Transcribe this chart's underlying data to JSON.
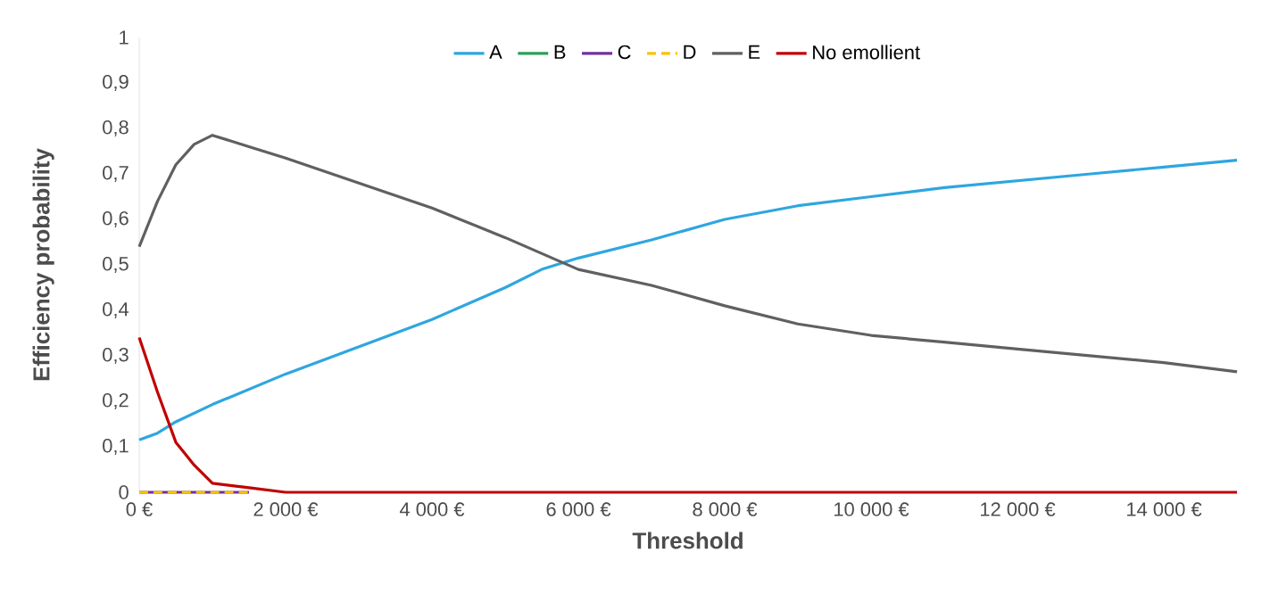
{
  "chart_data": {
    "type": "line",
    "xlabel": "Threshold",
    "ylabel": "Efficiency probability",
    "xlim": [
      0,
      15000
    ],
    "ylim": [
      0,
      1
    ],
    "xticks": [
      {
        "value": 0,
        "label": "0 €"
      },
      {
        "value": 2000,
        "label": "2 000 €"
      },
      {
        "value": 4000,
        "label": "4 000 €"
      },
      {
        "value": 6000,
        "label": "6 000 €"
      },
      {
        "value": 8000,
        "label": "8 000 €"
      },
      {
        "value": 10000,
        "label": "10 000 €"
      },
      {
        "value": 12000,
        "label": "12 000 €"
      },
      {
        "value": 14000,
        "label": "14 000 €"
      }
    ],
    "yticks": [
      0,
      {
        "value": 0.1,
        "label": "0,1"
      },
      {
        "value": 0.2,
        "label": "0,2"
      },
      {
        "value": 0.3,
        "label": "0,3"
      },
      {
        "value": 0.4,
        "label": "0,4"
      },
      {
        "value": 0.5,
        "label": "0,5"
      },
      {
        "value": 0.6,
        "label": "0,6"
      },
      {
        "value": 0.7,
        "label": "0,7"
      },
      {
        "value": 0.8,
        "label": "0,8"
      },
      {
        "value": 0.9,
        "label": "0,9"
      },
      1
    ],
    "grid": false,
    "legend": "top",
    "line_style": "solid",
    "series": [
      {
        "name": "A",
        "color": "#2ea6e0",
        "x": [
          0,
          250,
          500,
          1000,
          2000,
          3000,
          4000,
          5000,
          5500,
          6000,
          7000,
          8000,
          9000,
          10000,
          11000,
          12000,
          13000,
          14000,
          15000
        ],
        "values": [
          0.115,
          0.13,
          0.155,
          0.193,
          0.26,
          0.32,
          0.38,
          0.45,
          0.49,
          0.515,
          0.555,
          0.6,
          0.63,
          0.65,
          0.67,
          0.685,
          0.7,
          0.715,
          0.73
        ]
      },
      {
        "name": "B",
        "color": "#2ca05a"
      },
      {
        "name": "C",
        "color": "#7030a0",
        "x": [
          0,
          1500
        ],
        "values": [
          0,
          0
        ]
      },
      {
        "name": "D",
        "color": "#ffc000",
        "line_style": "dashed",
        "x": [
          0,
          1500
        ],
        "values": [
          0,
          0
        ]
      },
      {
        "name": "E",
        "color": "#606060",
        "x": [
          0,
          250,
          500,
          750,
          1000,
          1500,
          2000,
          3000,
          4000,
          5000,
          6000,
          7000,
          8000,
          9000,
          10000,
          11000,
          12000,
          13000,
          14000,
          15000
        ],
        "values": [
          0.54,
          0.64,
          0.72,
          0.765,
          0.785,
          0.76,
          0.735,
          0.68,
          0.625,
          0.56,
          0.49,
          0.455,
          0.41,
          0.37,
          0.345,
          0.33,
          0.315,
          0.3,
          0.285,
          0.265
        ]
      },
      {
        "name": "No emollient",
        "color": "#c00000",
        "x": [
          0,
          250,
          500,
          750,
          1000,
          1500,
          2000,
          15000
        ],
        "values": [
          0.34,
          0.22,
          0.11,
          0.06,
          0.02,
          0.01,
          0,
          0
        ]
      }
    ]
  }
}
